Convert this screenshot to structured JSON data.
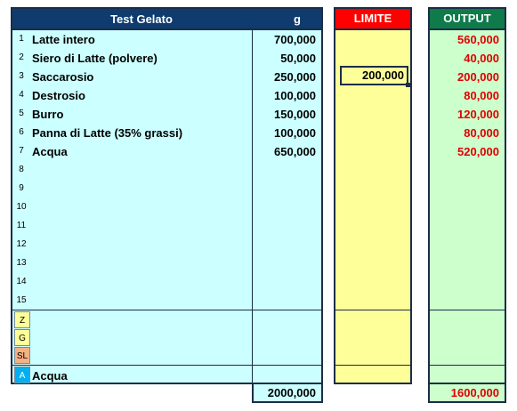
{
  "main": {
    "title": "Test Gelato",
    "unit": "g",
    "rows": [
      {
        "num": "1",
        "name": "Latte intero",
        "value": "700,000"
      },
      {
        "num": "2",
        "name": "Siero di Latte (polvere)",
        "value": "50,000"
      },
      {
        "num": "3",
        "name": "Saccarosio",
        "value": "250,000"
      },
      {
        "num": "4",
        "name": "Destrosio",
        "value": "100,000"
      },
      {
        "num": "5",
        "name": "Burro",
        "value": "150,000"
      },
      {
        "num": "6",
        "name": "Panna di Latte (35% grassi)",
        "value": "100,000"
      },
      {
        "num": "7",
        "name": "Acqua",
        "value": "650,000"
      },
      {
        "num": "8",
        "name": "",
        "value": ""
      },
      {
        "num": "9",
        "name": "",
        "value": ""
      },
      {
        "num": "10",
        "name": "",
        "value": ""
      },
      {
        "num": "11",
        "name": "",
        "value": ""
      },
      {
        "num": "12",
        "name": "",
        "value": ""
      },
      {
        "num": "13",
        "name": "",
        "value": ""
      },
      {
        "num": "14",
        "name": "",
        "value": ""
      },
      {
        "num": "15",
        "name": "",
        "value": ""
      }
    ],
    "tags": {
      "z": "Z",
      "g": "G",
      "sl": "SL",
      "a": "A"
    },
    "a_row_name": "Acqua",
    "total": "2000,000"
  },
  "limite": {
    "title": "LIMITE",
    "selected_value": "200,000"
  },
  "output": {
    "title": "OUTPUT",
    "values": [
      "560,000",
      "40,000",
      "200,000",
      "80,000",
      "120,000",
      "80,000",
      "520,000"
    ],
    "total": "1600,000"
  },
  "colors": {
    "main_header": "#0f3b6e",
    "main_body": "#ccffff",
    "limite_header": "#ff0000",
    "limite_body": "#ffff99",
    "output_header": "#0f7a4a",
    "output_body": "#ccffcc",
    "output_text": "#e00000"
  }
}
